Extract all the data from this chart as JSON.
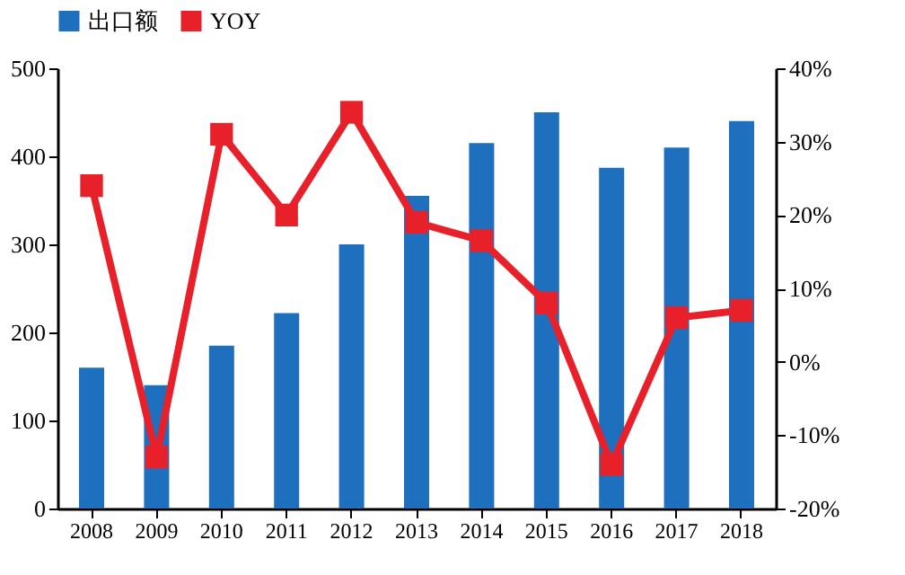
{
  "chart_data": {
    "type": "bar",
    "categories": [
      "2008",
      "2009",
      "2010",
      "2011",
      "2012",
      "2013",
      "2014",
      "2015",
      "2016",
      "2017",
      "2018"
    ],
    "series": [
      {
        "name": "出口额",
        "color": "#1f6fbf",
        "values": [
          160,
          140,
          185,
          222,
          300,
          355,
          415,
          450,
          387,
          410,
          440
        ]
      },
      {
        "name": "YOY",
        "type": "line",
        "axis": "y2",
        "color": "#e8202a",
        "marker": "square",
        "values": [
          24,
          -13,
          31,
          20,
          34,
          19,
          16.5,
          8,
          -14,
          6,
          7
        ]
      }
    ],
    "ylim": [
      0,
      500
    ],
    "yticks": [
      0,
      100,
      200,
      300,
      400,
      500
    ],
    "y2lim": [
      -20,
      40
    ],
    "y2ticks": [
      {
        "value": -20,
        "label": "-20%"
      },
      {
        "value": -10,
        "label": "-10%"
      },
      {
        "value": 0,
        "label": "0%"
      },
      {
        "value": 10,
        "label": "10%"
      },
      {
        "value": 20,
        "label": "20%"
      },
      {
        "value": 30,
        "label": "30%"
      },
      {
        "value": 40,
        "label": "40%"
      }
    ],
    "legend": "top",
    "grid": false
  }
}
